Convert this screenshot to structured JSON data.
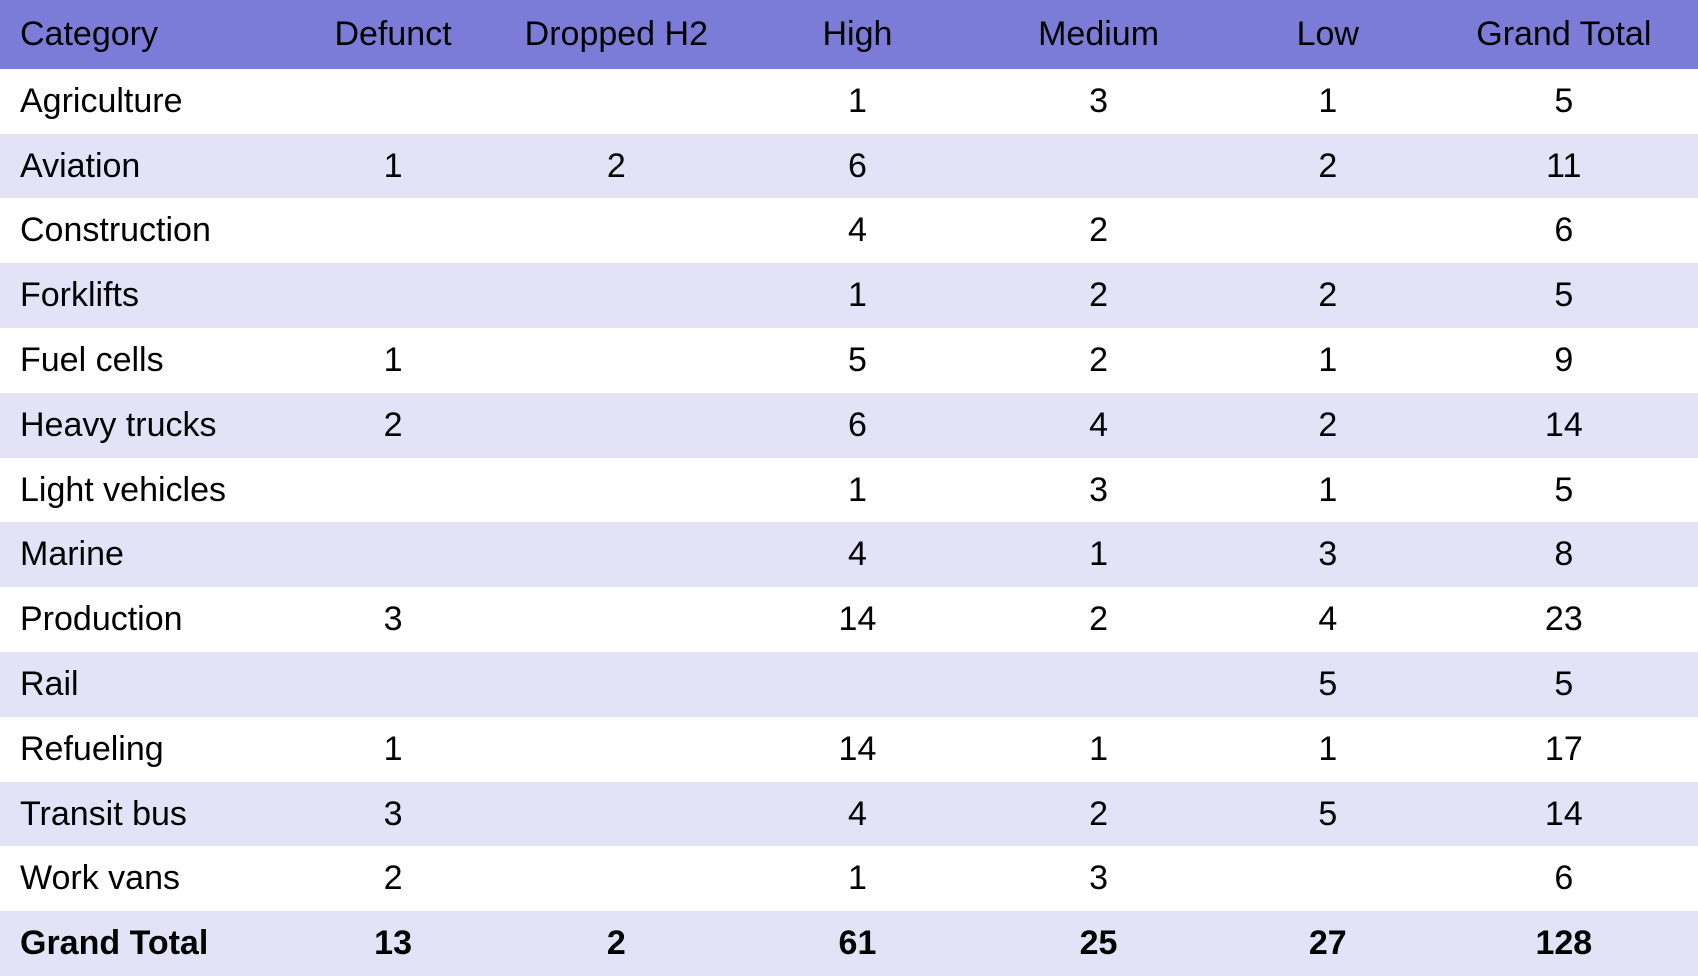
{
  "table": {
    "type": "table",
    "colors": {
      "header_bg": "#7b7bd8",
      "header_text": "#000000",
      "row_odd_bg": "#ffffff",
      "row_even_bg": "#e3e2f6",
      "total_bg": "#e3e2f6",
      "body_text": "#000000"
    },
    "typography": {
      "font_family": "Arial, Helvetica, sans-serif",
      "header_fontsize": 34,
      "body_fontsize": 34,
      "header_fontweight": "400",
      "body_fontweight": "400",
      "total_fontweight": "700"
    },
    "columns": [
      {
        "label": "Category",
        "align": "left",
        "width_pct": 17.5
      },
      {
        "label": "Defunct",
        "align": "center",
        "width_pct": 11.3
      },
      {
        "label": "Dropped H2",
        "align": "center",
        "width_pct": 15.0
      },
      {
        "label": "High",
        "align": "center",
        "width_pct": 13.4
      },
      {
        "label": "Medium",
        "align": "center",
        "width_pct": 15.0
      },
      {
        "label": "Low",
        "align": "center",
        "width_pct": 12.0
      },
      {
        "label": "Grand Total",
        "align": "center",
        "width_pct": 15.8
      }
    ],
    "rows": [
      [
        "Agriculture",
        "",
        "",
        "1",
        "3",
        "1",
        "5"
      ],
      [
        "Aviation",
        "1",
        "2",
        "6",
        "",
        "2",
        "11"
      ],
      [
        "Construction",
        "",
        "",
        "4",
        "2",
        "",
        "6"
      ],
      [
        "Forklifts",
        "",
        "",
        "1",
        "2",
        "2",
        "5"
      ],
      [
        "Fuel cells",
        "1",
        "",
        "5",
        "2",
        "1",
        "9"
      ],
      [
        "Heavy trucks",
        "2",
        "",
        "6",
        "4",
        "2",
        "14"
      ],
      [
        "Light vehicles",
        "",
        "",
        "1",
        "3",
        "1",
        "5"
      ],
      [
        "Marine",
        "",
        "",
        "4",
        "1",
        "3",
        "8"
      ],
      [
        "Production",
        "3",
        "",
        "14",
        "2",
        "4",
        "23"
      ],
      [
        "Rail",
        "",
        "",
        "",
        "",
        "5",
        "5"
      ],
      [
        "Refueling",
        "1",
        "",
        "14",
        "1",
        "1",
        "17"
      ],
      [
        "Transit bus",
        "3",
        "",
        "4",
        "2",
        "5",
        "14"
      ],
      [
        "Work vans",
        "2",
        "",
        "1",
        "3",
        "",
        "6"
      ]
    ],
    "total_row": [
      "Grand Total",
      "13",
      "2",
      "61",
      "25",
      "27",
      "128"
    ]
  }
}
